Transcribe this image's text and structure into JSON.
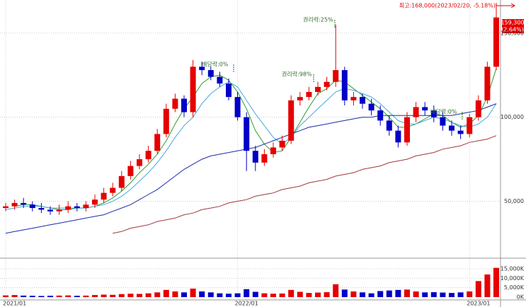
{
  "chart_data": {
    "type": "candlestick",
    "categories": [
      "2021/01",
      null,
      null,
      null,
      null,
      null,
      null,
      null,
      null,
      null,
      null,
      null,
      null,
      null,
      null,
      null,
      null,
      null,
      null,
      null,
      null,
      null,
      null,
      null,
      null,
      null,
      "2022/01",
      null,
      null,
      null,
      null,
      null,
      null,
      null,
      null,
      null,
      null,
      null,
      null,
      null,
      null,
      null,
      null,
      null,
      null,
      null,
      null,
      null,
      null,
      null,
      null,
      null,
      "2023/01",
      null,
      null,
      null
    ],
    "open": [
      46000,
      47000,
      49000,
      48000,
      46000,
      45000,
      44000,
      45000,
      47000,
      46000,
      48000,
      51000,
      55000,
      58000,
      65000,
      71000,
      75000,
      80000,
      90000,
      105000,
      111000,
      103000,
      130000,
      128000,
      124000,
      120000,
      112000,
      100000,
      80000,
      73000,
      78000,
      82000,
      86000,
      110000,
      112000,
      115000,
      118000,
      121000,
      128000,
      110000,
      112000,
      108000,
      104000,
      98000,
      92000,
      85000,
      100000,
      106000,
      104000,
      100000,
      95000,
      92000,
      90000,
      100000,
      110000,
      130000
    ],
    "high": [
      49000,
      51000,
      52000,
      50000,
      49000,
      47000,
      48000,
      50000,
      49000,
      50000,
      54000,
      58000,
      61000,
      68000,
      74000,
      78000,
      83000,
      93000,
      108000,
      114000,
      113000,
      134000,
      133000,
      130000,
      127000,
      123000,
      115000,
      103000,
      83000,
      81000,
      85000,
      89000,
      113000,
      115000,
      118000,
      121000,
      124000,
      155000,
      130000,
      115000,
      114000,
      111000,
      107000,
      101000,
      95000,
      103000,
      109000,
      109000,
      107000,
      103000,
      98000,
      95000,
      102000,
      113000,
      133000,
      168000
    ],
    "low": [
      44000,
      45000,
      46000,
      44000,
      43000,
      42000,
      42000,
      43000,
      44000,
      44000,
      46000,
      49000,
      53000,
      56000,
      63000,
      69000,
      73000,
      78000,
      88000,
      103000,
      100000,
      100000,
      125000,
      122000,
      118000,
      110000,
      98000,
      68000,
      68000,
      71000,
      76000,
      80000,
      84000,
      107000,
      110000,
      113000,
      116000,
      118000,
      107000,
      107000,
      105000,
      101000,
      95000,
      89000,
      82000,
      83000,
      97000,
      101000,
      97000,
      92000,
      89000,
      87000,
      88000,
      98000,
      108000,
      128000
    ],
    "close": [
      47000,
      49000,
      48000,
      46000,
      45000,
      44000,
      45000,
      47000,
      46000,
      48000,
      51000,
      55000,
      58000,
      65000,
      71000,
      75000,
      80000,
      90000,
      105000,
      111000,
      103000,
      130000,
      128000,
      124000,
      120000,
      112000,
      100000,
      80000,
      73000,
      78000,
      82000,
      86000,
      110000,
      112000,
      115000,
      118000,
      121000,
      128000,
      110000,
      112000,
      108000,
      104000,
      98000,
      92000,
      85000,
      100000,
      106000,
      104000,
      100000,
      95000,
      92000,
      90000,
      100000,
      110000,
      130000,
      159300
    ],
    "up_color": "#e60000",
    "down_color": "#0000c8",
    "moving_averages": [
      {
        "color": "#2e9e2e",
        "values": [
          null,
          47000,
          48000,
          48000,
          47000,
          46000,
          45000,
          45000,
          46000,
          46000,
          47000,
          49000,
          52000,
          56000,
          61000,
          67000,
          72000,
          78000,
          86000,
          96000,
          105000,
          112000,
          120000,
          124000,
          125000,
          122000,
          115000,
          105000,
          92000,
          84000,
          79000,
          80000,
          88000,
          97000,
          106000,
          114000,
          117000,
          122000,
          121000,
          117000,
          113000,
          109000,
          105000,
          100000,
          94000,
          94000,
          96000,
          99000,
          102000,
          101000,
          97000,
          94000,
          96000,
          101000,
          112000,
          129000
        ]
      },
      {
        "color": "#4aa8e0",
        "values": [
          45000,
          46000,
          47000,
          47000,
          47000,
          46000,
          46000,
          46000,
          46000,
          46000,
          47000,
          48000,
          50000,
          53000,
          57000,
          62000,
          67000,
          73000,
          80000,
          88000,
          95000,
          100000,
          108000,
          114000,
          118000,
          121000,
          118000,
          110000,
          102000,
          95000,
          88000,
          84000,
          88000,
          95000,
          100000,
          105000,
          110000,
          115000,
          117000,
          116000,
          114000,
          112000,
          108000,
          103000,
          98000,
          96000,
          96000,
          98000,
          100000,
          99000,
          97000,
          95000,
          94000,
          96000,
          100000,
          108000
        ]
      },
      {
        "color": "#1c2aa8",
        "values": [
          31000,
          32000,
          33000,
          34000,
          35000,
          36000,
          37000,
          38000,
          39000,
          40000,
          41000,
          42000,
          44000,
          46000,
          48000,
          51000,
          54000,
          57000,
          61000,
          65000,
          69000,
          72000,
          75000,
          77000,
          78000,
          79000,
          80000,
          81000,
          82000,
          84000,
          86000,
          88000,
          90000,
          92000,
          94000,
          95000,
          96000,
          97000,
          98000,
          99000,
          100000,
          100000,
          101000,
          101000,
          101000,
          101000,
          101000,
          101000,
          101000,
          101000,
          101000,
          102000,
          103000,
          104000,
          106000,
          108000
        ]
      },
      {
        "color": "#a0383c",
        "values": [
          null,
          null,
          null,
          null,
          null,
          null,
          null,
          null,
          null,
          null,
          null,
          null,
          31000,
          32000,
          34000,
          35000,
          36000,
          38000,
          39000,
          40000,
          42000,
          43000,
          45000,
          46000,
          47000,
          49000,
          50000,
          51000,
          53000,
          54000,
          55000,
          57000,
          58000,
          59000,
          61000,
          62000,
          63000,
          65000,
          66000,
          67000,
          69000,
          70000,
          71000,
          73000,
          74000,
          75000,
          77000,
          78000,
          79000,
          81000,
          82000,
          83000,
          85000,
          86000,
          87000,
          89000
        ]
      }
    ],
    "ylim": [
      17000,
      168000
    ],
    "yticks": [
      {
        "value": 50000,
        "label": "50,000"
      },
      {
        "value": 100000,
        "label": "100,000"
      },
      {
        "value": 150000,
        "label": "150,000"
      }
    ],
    "volume": [
      900,
      1100,
      800,
      700,
      600,
      700,
      800,
      900,
      700,
      800,
      1100,
      1300,
      1200,
      1600,
      1800,
      1700,
      2000,
      2500,
      3800,
      3000,
      2500,
      4500,
      3000,
      2500,
      2000,
      1800,
      2000,
      4200,
      2800,
      2000,
      1800,
      1900,
      3800,
      2800,
      2200,
      2400,
      2600,
      6800,
      4000,
      3000,
      2500,
      2000,
      3200,
      3500,
      3800,
      4000,
      3000,
      2500,
      2600,
      2400,
      2200,
      2500,
      3000,
      8500,
      12000,
      15500
    ],
    "volume_ylim": [
      0,
      19500
    ],
    "volume_yticks": [
      {
        "value": 0,
        "label": "0K"
      },
      {
        "value": 5000,
        "label": "5,000K"
      },
      {
        "value": 10000,
        "label": "10,000K"
      },
      {
        "value": 15000,
        "label": "15,000K"
      }
    ],
    "grid": true,
    "high_annotation": "최고:168,000(2023/02/20, -5.18%)",
    "price_label": "159,300",
    "change_label": "(2.64%)",
    "annotations": [
      "권리락:25%",
      "배당락:0%",
      "권리락:98%",
      "배당락:0%"
    ]
  }
}
